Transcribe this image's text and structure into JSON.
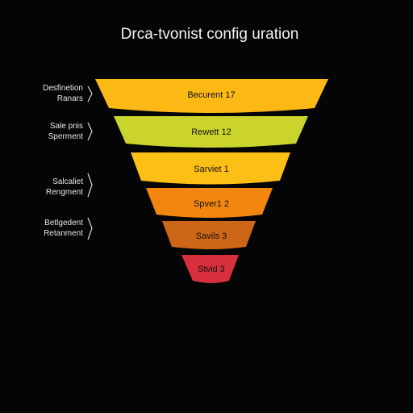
{
  "title": "Drca-tvonist config uration",
  "colors": {
    "background": "#050505",
    "text": "#f2f2f2"
  },
  "tiers": [
    {
      "label": "Becurent 17",
      "color": "#fcb814"
    },
    {
      "label": "Rewett 12",
      "color": "#cbd42c"
    },
    {
      "label": "Sarviet 1",
      "color": "#fcbf16"
    },
    {
      "label": "Spver1 2",
      "color": "#f3860e"
    },
    {
      "label": "Savils 3",
      "color": "#cd6717"
    },
    {
      "label": "Stvid 3",
      "color": "#d72f3b"
    }
  ],
  "side_labels": [
    {
      "line1": "Desfinetion",
      "line2": "Ranars"
    },
    {
      "line1": "Sale pnis",
      "line2": "Sperment"
    },
    {
      "line1": "Salcaliet",
      "line2": "Rengment"
    },
    {
      "line1": "Betlgedent",
      "line2": "Retanment"
    }
  ]
}
